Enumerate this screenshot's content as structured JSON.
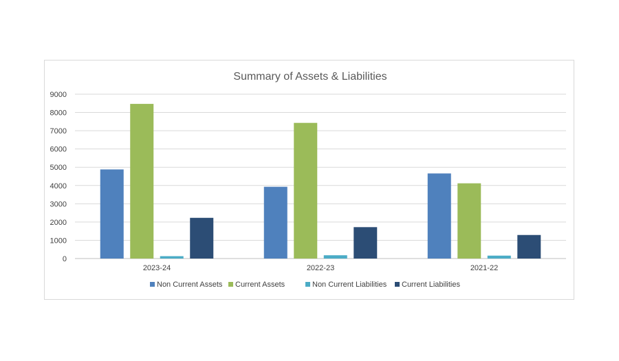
{
  "chart_data": {
    "type": "bar",
    "title": "Summary of Assets & Liabilities",
    "xlabel": "",
    "ylabel": "",
    "categories": [
      "2023-24",
      "2022-23",
      "2021-22"
    ],
    "ylim": [
      0,
      9000
    ],
    "yticks": [
      0,
      1000,
      2000,
      3000,
      4000,
      5000,
      6000,
      7000,
      8000,
      9000
    ],
    "grid": true,
    "legend_position": "bottom",
    "series": [
      {
        "name": "Non Current Assets",
        "color": "#4f81bd",
        "values": [
          4880,
          3930,
          4660
        ]
      },
      {
        "name": "Current Assets",
        "color": "#9bbb59",
        "values": [
          8470,
          7430,
          4120
        ]
      },
      {
        "name": "Non Current Liabilities",
        "color": "#4bacc6",
        "values": [
          130,
          180,
          160
        ]
      },
      {
        "name": "Current Liabilities",
        "color": "#2c4d75",
        "values": [
          2230,
          1720,
          1290
        ]
      }
    ]
  }
}
